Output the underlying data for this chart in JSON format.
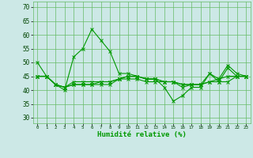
{
  "xlabel": "Humidité relative (%)",
  "xlim": [
    -0.5,
    23.5
  ],
  "ylim": [
    28,
    72
  ],
  "yticks": [
    30,
    35,
    40,
    45,
    50,
    55,
    60,
    65,
    70
  ],
  "xticks": [
    0,
    1,
    2,
    3,
    4,
    5,
    6,
    7,
    8,
    9,
    10,
    11,
    12,
    13,
    14,
    15,
    16,
    17,
    18,
    19,
    20,
    21,
    22,
    23
  ],
  "bg_color": "#cce8e6",
  "grid_color": "#66bb66",
  "line_color": "#009900",
  "lines": [
    [
      50,
      45,
      42,
      40,
      52,
      55,
      62,
      58,
      54,
      46,
      46,
      45,
      44,
      44,
      41,
      36,
      38,
      41,
      41,
      46,
      43,
      48,
      45,
      45
    ],
    [
      45,
      45,
      42,
      41,
      43,
      43,
      43,
      43,
      43,
      44,
      44,
      44,
      43,
      43,
      43,
      43,
      42,
      42,
      42,
      43,
      43,
      43,
      45,
      45
    ],
    [
      45,
      45,
      42,
      41,
      42,
      42,
      42,
      43,
      43,
      44,
      45,
      45,
      44,
      44,
      43,
      43,
      42,
      42,
      42,
      43,
      44,
      45,
      45,
      45
    ],
    [
      45,
      45,
      42,
      41,
      42,
      42,
      42,
      42,
      42,
      44,
      45,
      45,
      44,
      44,
      43,
      43,
      41,
      42,
      42,
      46,
      44,
      49,
      46,
      45
    ]
  ]
}
